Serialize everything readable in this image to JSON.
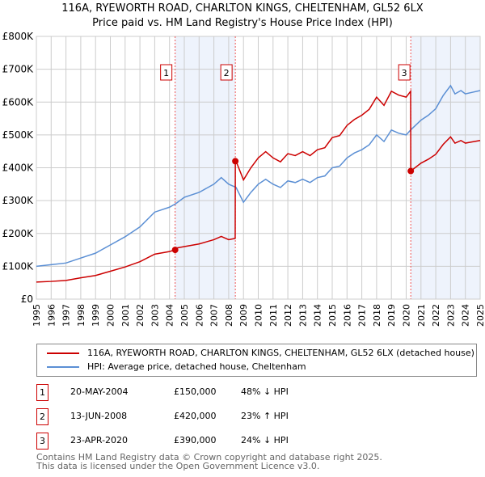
{
  "chart_data": {
    "type": "line",
    "title": "116A, RYEWORTH ROAD, CHARLTON KINGS, CHELTENHAM, GL52 6LX",
    "subtitle": "Price paid vs. HM Land Registry's House Price Index (HPI)",
    "xlim": [
      1995,
      2025
    ],
    "ylim": [
      0,
      800000
    ],
    "y_ticks": [
      {
        "v": 0,
        "label": "£0"
      },
      {
        "v": 100000,
        "label": "£100K"
      },
      {
        "v": 200000,
        "label": "£200K"
      },
      {
        "v": 300000,
        "label": "£300K"
      },
      {
        "v": 400000,
        "label": "£400K"
      },
      {
        "v": 500000,
        "label": "£500K"
      },
      {
        "v": 600000,
        "label": "£600K"
      },
      {
        "v": 700000,
        "label": "£700K"
      },
      {
        "v": 800000,
        "label": "£800K"
      }
    ],
    "x_ticks": [
      "1995",
      "1996",
      "1997",
      "1998",
      "1999",
      "2000",
      "2001",
      "2002",
      "2003",
      "2004",
      "2005",
      "2006",
      "2007",
      "2008",
      "2009",
      "2010",
      "2011",
      "2012",
      "2013",
      "2014",
      "2015",
      "2016",
      "2017",
      "2018",
      "2019",
      "2020",
      "2021",
      "2022",
      "2023",
      "2024",
      "2025"
    ],
    "grid": true,
    "series": [
      {
        "name": "116A, RYEWORTH ROAD, CHARLTON KINGS, CHELTENHAM, GL52 6LX (detached house)",
        "color": "#cc0000",
        "x": [
          1995,
          1996,
          1997,
          1998,
          1999,
          2000,
          2001,
          2002,
          2003,
          2004,
          2004.38,
          2004.4,
          2005,
          2006,
          2007,
          2007.5,
          2008,
          2008.44,
          2008.45,
          2008.5,
          2009,
          2009.5,
          2010,
          2010.5,
          2011,
          2011.5,
          2012,
          2012.5,
          2013,
          2013.5,
          2014,
          2014.5,
          2015,
          2015.5,
          2016,
          2016.5,
          2017,
          2017.5,
          2018,
          2018.5,
          2019,
          2019.5,
          2020,
          2020.3,
          2020.31,
          2021,
          2021.5,
          2022,
          2022.5,
          2023,
          2023.3,
          2023.7,
          2024,
          2024.5,
          2025
        ],
        "y": [
          52000,
          54000,
          57000,
          65000,
          72000,
          85000,
          98000,
          114000,
          137000,
          145000,
          150000,
          155000,
          160000,
          168000,
          181000,
          191000,
          181000,
          185000,
          420000,
          420000,
          363000,
          400000,
          430000,
          449000,
          430000,
          418000,
          443000,
          437000,
          449000,
          437000,
          455000,
          461000,
          492000,
          498000,
          529000,
          547000,
          560000,
          578000,
          615000,
          590000,
          633000,
          621000,
          615000,
          633000,
          390000,
          414000,
          426000,
          441000,
          471000,
          494000,
          475000,
          483000,
          475000,
          479000,
          483000
        ]
      },
      {
        "name": "HPI: Average price, detached house, Cheltenham",
        "color": "#5b8fd4",
        "x": [
          1995,
          1996,
          1997,
          1998,
          1999,
          2000,
          2001,
          2002,
          2003,
          2004,
          2004.4,
          2005,
          2006,
          2007,
          2007.5,
          2008,
          2008.5,
          2009,
          2009.5,
          2010,
          2010.5,
          2011,
          2011.5,
          2012,
          2012.5,
          2013,
          2013.5,
          2014,
          2014.5,
          2015,
          2015.5,
          2016,
          2016.5,
          2017,
          2017.5,
          2018,
          2018.5,
          2019,
          2019.5,
          2020,
          2020.3,
          2021,
          2021.5,
          2022,
          2022.5,
          2023,
          2023.3,
          2023.7,
          2024,
          2024.5,
          2025
        ],
        "y": [
          100000,
          105000,
          110000,
          125000,
          140000,
          165000,
          190000,
          220000,
          265000,
          280000,
          290000,
          310000,
          325000,
          350000,
          370000,
          350000,
          340000,
          295000,
          325000,
          350000,
          365000,
          350000,
          340000,
          360000,
          355000,
          365000,
          355000,
          370000,
          375000,
          400000,
          405000,
          430000,
          445000,
          455000,
          470000,
          500000,
          480000,
          515000,
          505000,
          500000,
          515000,
          545000,
          560000,
          580000,
          620000,
          650000,
          625000,
          635000,
          625000,
          630000,
          635000
        ]
      }
    ],
    "annotations": [
      {
        "label": "1",
        "date": "20-MAY-2004",
        "x": 2004.38,
        "price_value": 150000,
        "price": "£150,000",
        "hpi": "48% ↓ HPI"
      },
      {
        "label": "2",
        "date": "13-JUN-2008",
        "x": 2008.45,
        "price_value": 420000,
        "price": "£420,000",
        "hpi": "23% ↑ HPI"
      },
      {
        "label": "3",
        "date": "23-APR-2020",
        "x": 2020.31,
        "price_value": 390000,
        "price": "£390,000",
        "hpi": "24% ↓ HPI"
      }
    ]
  },
  "footer": {
    "line1": "Contains HM Land Registry data © Crown copyright and database right 2025.",
    "line2": "This data is licensed under the Open Government Licence v3.0."
  }
}
